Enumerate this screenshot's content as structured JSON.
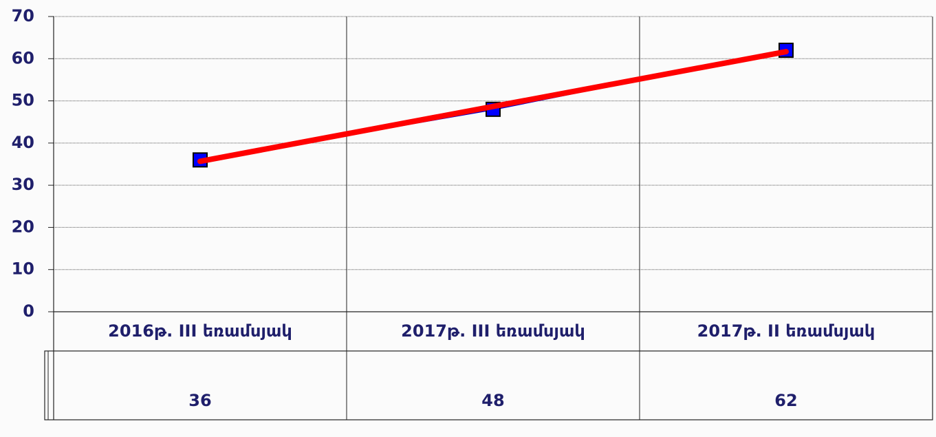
{
  "chart_data": {
    "type": "line",
    "categories": [
      "2016թ. III եռամսյակ",
      "2017թ. III եռամսյակ",
      "2017թ. II եռամսյակ"
    ],
    "series": [
      {
        "color": "#0000cc",
        "marker_color": "#0000ff",
        "values": [
          36,
          48,
          62
        ]
      }
    ],
    "trendline": {
      "color": "#ff0000",
      "values": [
        35.67,
        48.67,
        61.67
      ]
    },
    "ylim": [
      0,
      70
    ],
    "yticks": [
      0,
      10,
      20,
      30,
      40,
      50,
      60,
      70
    ],
    "grid": true,
    "data_table": true
  }
}
